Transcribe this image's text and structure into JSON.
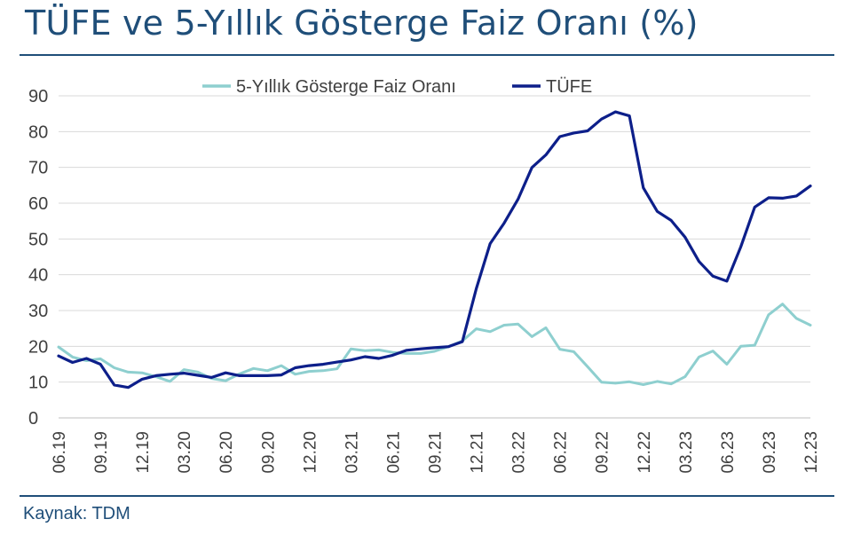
{
  "title": "TÜFE ve 5-Yıllık Gösterge Faiz Oranı (%)",
  "source": "Kaynak: TDM",
  "chart_data": {
    "type": "line",
    "ylim": [
      0,
      90
    ],
    "yticks": [
      "0",
      "10",
      "20",
      "30",
      "40",
      "50",
      "60",
      "70",
      "80",
      "90"
    ],
    "xticks": [
      "06.19",
      "09.19",
      "12.19",
      "03.20",
      "06.20",
      "09.20",
      "12.20",
      "03.21",
      "06.21",
      "09.21",
      "12.21",
      "03.22",
      "06.22",
      "09.22",
      "12.22",
      "03.23",
      "06.23",
      "09.23",
      "12.23"
    ],
    "x": [
      "06.19",
      "07.19",
      "08.19",
      "09.19",
      "10.19",
      "11.19",
      "12.19",
      "01.20",
      "02.20",
      "03.20",
      "04.20",
      "05.20",
      "06.20",
      "07.20",
      "08.20",
      "09.20",
      "10.20",
      "11.20",
      "12.20",
      "01.21",
      "02.21",
      "03.21",
      "04.21",
      "05.21",
      "06.21",
      "07.21",
      "08.21",
      "09.21",
      "10.21",
      "11.21",
      "12.21",
      "01.22",
      "02.22",
      "03.22",
      "04.22",
      "05.22",
      "06.22",
      "07.22",
      "08.22",
      "09.22",
      "10.22",
      "11.22",
      "12.22",
      "01.23",
      "02.23",
      "03.23",
      "04.23",
      "05.23",
      "06.23",
      "07.23",
      "08.23",
      "09.23",
      "10.23",
      "11.23",
      "12.23"
    ],
    "grid": true,
    "legend_position": "top",
    "series": [
      {
        "name": "5-Yıllık Gösterge Faiz Oranı",
        "color": "#8ecfcf",
        "values": [
          19.8,
          17.0,
          16.0,
          16.5,
          14.0,
          12.8,
          12.6,
          11.5,
          10.2,
          13.5,
          12.8,
          11.0,
          10.4,
          12.3,
          13.8,
          13.2,
          14.6,
          12.2,
          13.0,
          13.2,
          13.7,
          19.3,
          18.8,
          19.0,
          18.3,
          18.0,
          18.0,
          18.6,
          19.9,
          21.5,
          24.9,
          24.1,
          25.9,
          26.2,
          22.7,
          25.2,
          19.2,
          18.5,
          14.3,
          10.0,
          9.7,
          10.1,
          9.3,
          10.2,
          9.5,
          11.5,
          17.0,
          18.7,
          15.0,
          20.0,
          20.3,
          28.8,
          31.8,
          27.8,
          25.9
        ]
      },
      {
        "name": "TÜFE",
        "color": "#0d1f8a",
        "values": [
          17.3,
          15.5,
          16.6,
          15.0,
          9.2,
          8.5,
          10.8,
          11.8,
          12.2,
          12.5,
          11.9,
          11.3,
          12.6,
          11.8,
          11.8,
          11.8,
          12.0,
          14.0,
          14.6,
          14.97,
          15.6,
          16.2,
          17.1,
          16.6,
          17.5,
          18.9,
          19.3,
          19.6,
          19.9,
          21.3,
          36.1,
          48.7,
          54.4,
          61.1,
          69.97,
          73.5,
          78.6,
          79.6,
          80.2,
          83.5,
          85.5,
          84.4,
          64.3,
          57.7,
          55.2,
          50.5,
          43.7,
          39.6,
          38.2,
          47.8,
          58.9,
          61.5,
          61.4,
          62.0,
          64.8
        ]
      }
    ]
  }
}
